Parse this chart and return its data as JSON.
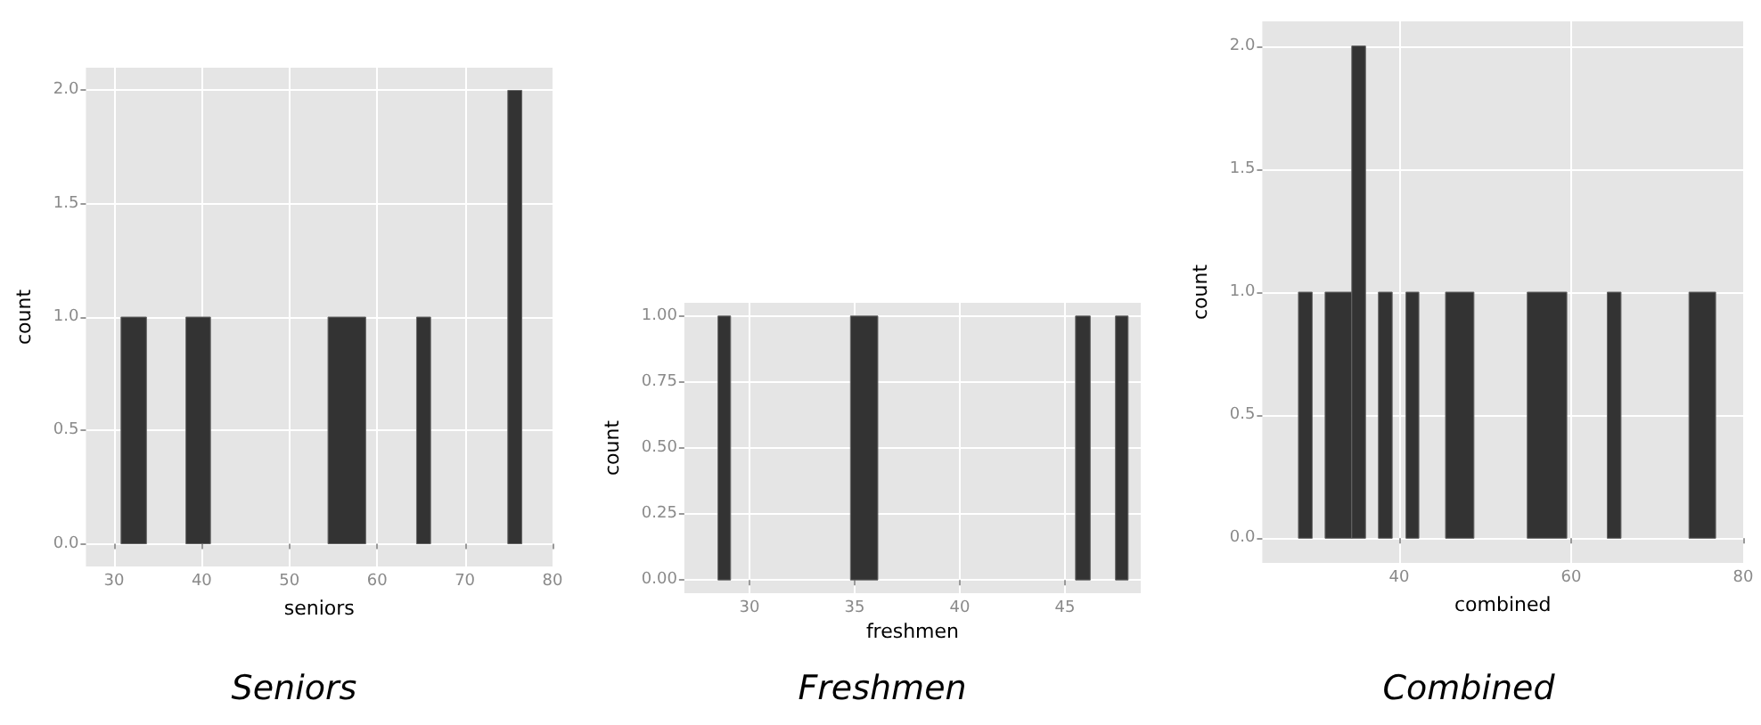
{
  "chart_data": [
    {
      "type": "histogram",
      "title": "Seniors",
      "xlabel": "seniors",
      "ylabel": "count",
      "color": "#333333",
      "grid": true,
      "bins": [
        30.8,
        33.7,
        38.2,
        41,
        54.4,
        58.7,
        64.5,
        66.1,
        74.9,
        76.5
      ],
      "values": [
        1,
        0,
        1,
        0,
        1,
        0,
        1,
        0,
        2
      ],
      "xlim": [
        26.8,
        80
      ],
      "xticks": [
        30,
        40,
        50,
        60,
        70,
        80
      ],
      "ylim": [
        -0.1,
        2.1
      ],
      "yticks": [
        {
          "value": 0,
          "label": "0.0"
        },
        {
          "value": 0.5,
          "label": "0.5"
        },
        {
          "value": 1,
          "label": "1.0"
        },
        {
          "value": 1.5,
          "label": "1.5"
        },
        {
          "value": 2,
          "label": "2.0"
        }
      ]
    },
    {
      "type": "histogram",
      "title": "Freshmen",
      "xlabel": "freshmen",
      "ylabel": "count",
      "color": "#333333",
      "grid": true,
      "bins": [
        28.5,
        29.1,
        34.8,
        36.1,
        45.5,
        46.2,
        47.4,
        48
      ],
      "values": [
        1,
        0,
        1,
        0,
        1,
        0,
        1
      ],
      "xlim": [
        26.9,
        48.6
      ],
      "xticks": [
        30,
        35,
        40,
        45
      ],
      "ylim": [
        -0.05,
        1.05
      ],
      "yticks": [
        {
          "value": 0,
          "label": "0.00"
        },
        {
          "value": 0.25,
          "label": "0.25"
        },
        {
          "value": 0.5,
          "label": "0.50"
        },
        {
          "value": 0.75,
          "label": "0.75"
        },
        {
          "value": 1,
          "label": "1.00"
        }
      ]
    },
    {
      "type": "histogram",
      "title": "Combined",
      "xlabel": "combined",
      "ylabel": "count",
      "color": "#333333",
      "grid": true,
      "bins": [
        28.3,
        29.9,
        31.4,
        34.5,
        36.1,
        37.6,
        39.2,
        40.8,
        42.3,
        45.4,
        48.7,
        54.9,
        59.5,
        64.2,
        65.8,
        73.7,
        76.8
      ],
      "values": [
        1,
        0,
        1,
        2,
        0,
        1,
        0,
        1,
        0,
        1,
        0,
        1,
        0,
        1,
        0,
        1
      ],
      "xlim": [
        24.1,
        80
      ],
      "xticks": [
        40,
        60,
        80
      ],
      "ylim": [
        -0.1,
        2.1
      ],
      "yticks": [
        {
          "value": 0,
          "label": "0.0"
        },
        {
          "value": 0.5,
          "label": "0.5"
        },
        {
          "value": 1,
          "label": "1.0"
        },
        {
          "value": 1.5,
          "label": "1.5"
        },
        {
          "value": 2,
          "label": "2.0"
        }
      ]
    }
  ]
}
